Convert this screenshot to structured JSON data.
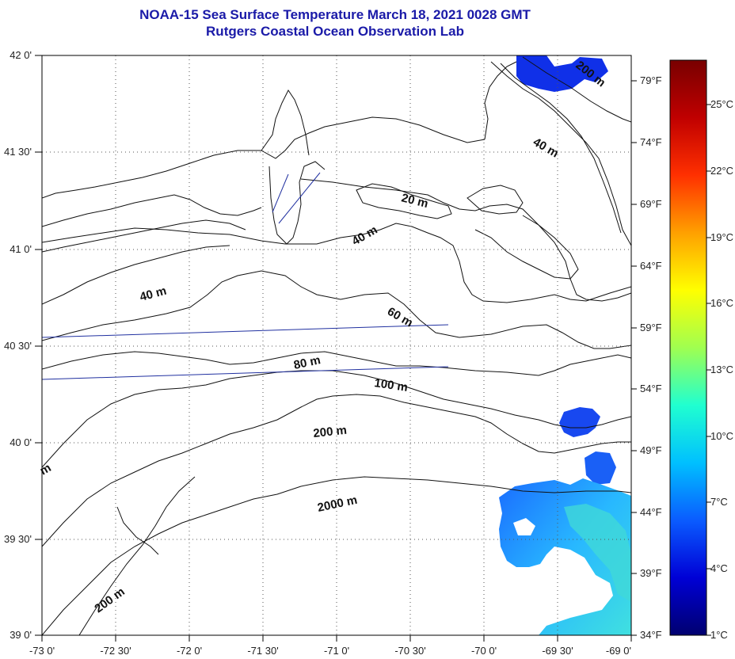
{
  "title": {
    "line1": "NOAA-15 Sea Surface Temperature March 18, 2021 0028 GMT",
    "line2": "Rutgers Coastal Ocean Observation Lab"
  },
  "latitude_labels": [
    "42 0'",
    "41 30'",
    "41 0'",
    "40 30'",
    "40 0'",
    "39 30'",
    "39 0'"
  ],
  "longitude_labels": [
    "-73 0'",
    "-72 30'",
    "-72 0'",
    "-71 30'",
    "-71 0'",
    "-70 30'",
    "-70 0'",
    "-69 30'",
    "-69 0'"
  ],
  "fahrenheit_labels": [
    "79°F",
    "74°F",
    "69°F",
    "64°F",
    "59°F",
    "54°F",
    "49°F",
    "44°F",
    "39°F",
    "34°F"
  ],
  "celsius_labels": [
    "25°C",
    "22°C",
    "19°C",
    "16°C",
    "13°C",
    "10°C",
    "7°C",
    "4°C",
    "1°C"
  ],
  "contour_labels": [
    "20 m",
    "40 m",
    "40 m",
    "40 m",
    "60 m",
    "80 m",
    "100 m",
    "200 m",
    "2000 m",
    "200 m",
    "200 m",
    "m"
  ],
  "colorbar": {
    "stops": [
      "#00006f",
      "#0000d6",
      "#0a5cff",
      "#00c0ff",
      "#20ffd0",
      "#a0ff50",
      "#ffff00",
      "#ffa000",
      "#ff3000",
      "#c00000",
      "#780000"
    ]
  },
  "colors": {
    "title": "#1a1aa8",
    "coastline": "#111111",
    "track_line": "#2030a0",
    "grid": "#555555"
  }
}
